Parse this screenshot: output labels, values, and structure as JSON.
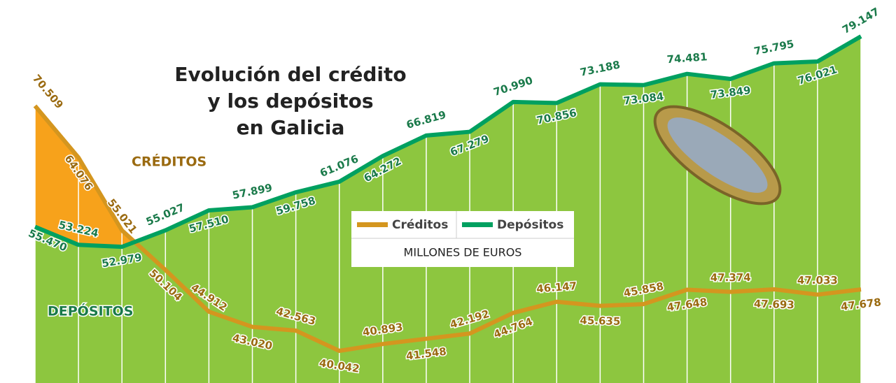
{
  "chart_data": {
    "type": "line",
    "title": [
      "Evolución del crédito",
      "y los depósitos",
      "en Galicia"
    ],
    "units": "MILLONES DE EUROS",
    "annotations": [
      "CRÉDITOS",
      "DEPÓSITOS"
    ],
    "categories": [
      null,
      null,
      null,
      null,
      null,
      null,
      null,
      null,
      null,
      null,
      null,
      null,
      null,
      null,
      null,
      null,
      null,
      null,
      null,
      null
    ],
    "series": [
      {
        "name": "Créditos",
        "color": "#d4961f",
        "fill": "#f7a21b",
        "values": [
          70509,
          64076,
          55021,
          50104,
          44912,
          43020,
          42563,
          40042,
          40893,
          41548,
          42192,
          44764,
          46147,
          45635,
          45858,
          47648,
          47374,
          47693,
          47033,
          47678
        ],
        "value_labels": [
          "70.509",
          "64.076",
          "55.021",
          "50.104",
          "44.912",
          "43.020",
          "42.563",
          "40.042",
          "40.893",
          "41.548",
          "42.192",
          "44.764",
          "46.147",
          "45.635",
          "45.858",
          "47.648",
          "47.374",
          "47.693",
          "47.033",
          "47.678"
        ]
      },
      {
        "name": "Depósitos",
        "color": "#00a060",
        "fill": "#8dc63f",
        "values": [
          55470,
          53224,
          52979,
          55027,
          57510,
          57899,
          59758,
          61076,
          64272,
          66819,
          67279,
          70990,
          70856,
          73188,
          73084,
          74481,
          73849,
          75795,
          76021,
          79147
        ],
        "value_labels": [
          "55.470",
          "53.224",
          "52.979",
          "55.027",
          "57.510",
          "57.899",
          "59.758",
          "61.076",
          "64.272",
          "66.819",
          "67.279",
          "70.990",
          "70.856",
          "73.188",
          "73.084",
          "74.481",
          "73.849",
          "75.795",
          "76.021",
          "79.147"
        ]
      }
    ]
  }
}
